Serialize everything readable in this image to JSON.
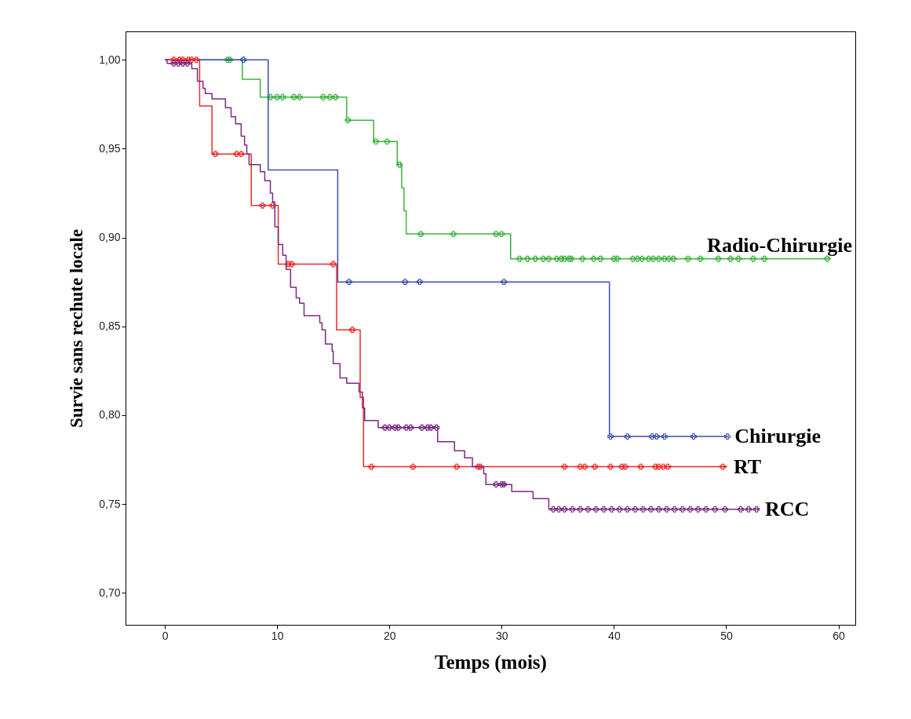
{
  "chart_data": {
    "type": "step",
    "xlabel": "Temps (mois)",
    "ylabel": "Survie sans rechute locale",
    "xlim": [
      -3.5,
      61.5
    ],
    "xticks": [
      0,
      10,
      20,
      30,
      40,
      50,
      60
    ],
    "ylim": [
      0.682,
      1.016
    ],
    "yticks": [
      {
        "value": 0.7,
        "label": "0,70"
      },
      {
        "value": 0.75,
        "label": "0,75"
      },
      {
        "value": 0.8,
        "label": "0,80"
      },
      {
        "value": 0.85,
        "label": "0,85"
      },
      {
        "value": 0.9,
        "label": "0,90"
      },
      {
        "value": 0.95,
        "label": "0,95"
      },
      {
        "value": 1,
        "label": "1,00"
      }
    ],
    "series": [
      {
        "name": "Radio-Chirurgie",
        "type": "step",
        "color": "#3cb43c",
        "x": [
          0,
          6.9,
          8.5,
          16.2,
          18.6,
          20.7,
          21.1,
          21.3,
          21.5,
          30.8,
          59.3
        ],
        "values": [
          1,
          0.989,
          0.979,
          0.966,
          0.954,
          0.941,
          0.928,
          0.915,
          0.902,
          0.888,
          0.888
        ]
      },
      {
        "type": "scatter",
        "marker": "cross",
        "color": "#3cb43c",
        "x": [
          5.6,
          5.8,
          9.4,
          10.0,
          10.5,
          11.5,
          12.0,
          14.1,
          14.7,
          15.2,
          16.3,
          18.8,
          19.8,
          20.9,
          22.8,
          25.7,
          29.5,
          30.0,
          31.6,
          32.3,
          33.0,
          33.7,
          34.2,
          34.9,
          35.3,
          35.6,
          36.0,
          36.2,
          37.2,
          38.2,
          38.8,
          40.0,
          40.3,
          41.7,
          42.1,
          42.5,
          43.1,
          43.5,
          44.0,
          44.5,
          44.9,
          45.3,
          46.6,
          47.7,
          49.3,
          50.4,
          51.1,
          52.4,
          53.4,
          59.0
        ],
        "values": [
          1,
          1,
          0.979,
          0.979,
          0.979,
          0.979,
          0.979,
          0.979,
          0.979,
          0.979,
          0.966,
          0.954,
          0.954,
          0.941,
          0.902,
          0.902,
          0.902,
          0.902,
          0.888,
          0.888,
          0.888,
          0.888,
          0.888,
          0.888,
          0.888,
          0.888,
          0.888,
          0.888,
          0.888,
          0.888,
          0.888,
          0.888,
          0.888,
          0.888,
          0.888,
          0.888,
          0.888,
          0.888,
          0.888,
          0.888,
          0.888,
          0.888,
          0.888,
          0.888,
          0.888,
          0.888,
          0.888,
          0.888,
          0.888,
          0.888
        ]
      },
      {
        "name": "Chirurgie",
        "type": "step",
        "color": "#3a4fb0",
        "x": [
          0,
          9.2,
          15.4,
          39.6,
          50.2
        ],
        "values": [
          1,
          0.938,
          0.875,
          0.788,
          0.788
        ]
      },
      {
        "type": "scatter",
        "marker": "cross",
        "color": "#3a4fb0",
        "x": [
          7.0,
          16.4,
          21.4,
          22.7,
          30.2,
          39.7,
          41.2,
          43.4,
          43.8,
          44.5,
          47.1,
          50.1
        ],
        "values": [
          1,
          0.875,
          0.875,
          0.875,
          0.875,
          0.788,
          0.788,
          0.788,
          0.788,
          0.788,
          0.788,
          0.788
        ]
      },
      {
        "name": "RT",
        "type": "step",
        "color": "#f02828",
        "x": [
          0,
          3.1,
          4.2,
          7.7,
          10.1,
          15.3,
          17.4,
          17.7,
          50.1
        ],
        "values": [
          1,
          0.974,
          0.947,
          0.918,
          0.885,
          0.848,
          0.81,
          0.771,
          0.771
        ]
      },
      {
        "type": "scatter",
        "marker": "cross",
        "color": "#f02828",
        "x": [
          0.8,
          1.3,
          1.6,
          2.1,
          2.4,
          2.8,
          4.5,
          6.4,
          6.8,
          8.7,
          9.6,
          11.0,
          11.3,
          15.0,
          16.7,
          18.4,
          22.1,
          26.0,
          27.9,
          28.1,
          35.6,
          37.0,
          37.4,
          38.3,
          39.7,
          40.7,
          41.0,
          42.4,
          43.7,
          44.0,
          44.4,
          44.8,
          49.7
        ],
        "values": [
          1,
          1,
          1,
          1,
          1,
          1,
          0.947,
          0.947,
          0.947,
          0.918,
          0.918,
          0.885,
          0.885,
          0.885,
          0.848,
          0.771,
          0.771,
          0.771,
          0.771,
          0.771,
          0.771,
          0.771,
          0.771,
          0.771,
          0.771,
          0.771,
          0.771,
          0.771,
          0.771,
          0.771,
          0.771,
          0.771,
          0.771
        ]
      },
      {
        "name": "RCC",
        "type": "step",
        "color": "#7a2a84",
        "x": [
          0,
          0.2,
          2.4,
          2.9,
          3.4,
          3.6,
          4.2,
          5.4,
          5.9,
          6.3,
          6.8,
          7.1,
          7.3,
          7.5,
          8.5,
          8.9,
          9.4,
          9.6,
          9.8,
          10.1,
          10.5,
          10.8,
          11.2,
          11.7,
          12.0,
          12.4,
          13.8,
          14.0,
          14.3,
          14.9,
          15.0,
          15.6,
          16.2,
          17.3,
          17.6,
          17.8,
          19.0,
          24.3,
          25.8,
          26.7,
          27.4,
          28.4,
          28.6,
          30.9,
          32.8,
          34.2,
          52.9
        ],
        "values": [
          1,
          0.998,
          0.995,
          0.988,
          0.984,
          0.981,
          0.978,
          0.973,
          0.968,
          0.964,
          0.957,
          0.952,
          0.947,
          0.941,
          0.937,
          0.932,
          0.925,
          0.92,
          0.906,
          0.896,
          0.89,
          0.882,
          0.872,
          0.866,
          0.863,
          0.856,
          0.852,
          0.848,
          0.84,
          0.836,
          0.829,
          0.821,
          0.818,
          0.813,
          0.804,
          0.797,
          0.793,
          0.785,
          0.78,
          0.776,
          0.771,
          0.767,
          0.761,
          0.757,
          0.753,
          0.747,
          0.747
        ]
      },
      {
        "type": "scatter",
        "marker": "cross",
        "color": "#7a2a84",
        "x": [
          0.8,
          1.2,
          1.6,
          2.0,
          19.6,
          20.0,
          20.5,
          20.8,
          21.5,
          21.9,
          22.9,
          23.4,
          23.7,
          24.2,
          29.5,
          30.0,
          30.2,
          34.6,
          35.1,
          35.6,
          36.3,
          37.0,
          37.7,
          38.4,
          39.1,
          39.8,
          40.5,
          41.2,
          41.9,
          42.6,
          43.3,
          44.0,
          44.7,
          45.4,
          46.1,
          46.8,
          47.5,
          48.2,
          49.0,
          49.9,
          51.3,
          52.0,
          52.7
        ],
        "values": [
          0.998,
          0.998,
          0.998,
          0.998,
          0.793,
          0.793,
          0.793,
          0.793,
          0.793,
          0.793,
          0.793,
          0.793,
          0.793,
          0.793,
          0.761,
          0.761,
          0.761,
          0.747,
          0.747,
          0.747,
          0.747,
          0.747,
          0.747,
          0.747,
          0.747,
          0.747,
          0.747,
          0.747,
          0.747,
          0.747,
          0.747,
          0.747,
          0.747,
          0.747,
          0.747,
          0.747,
          0.747,
          0.747,
          0.747,
          0.747,
          0.747,
          0.747,
          0.747
        ]
      }
    ]
  }
}
